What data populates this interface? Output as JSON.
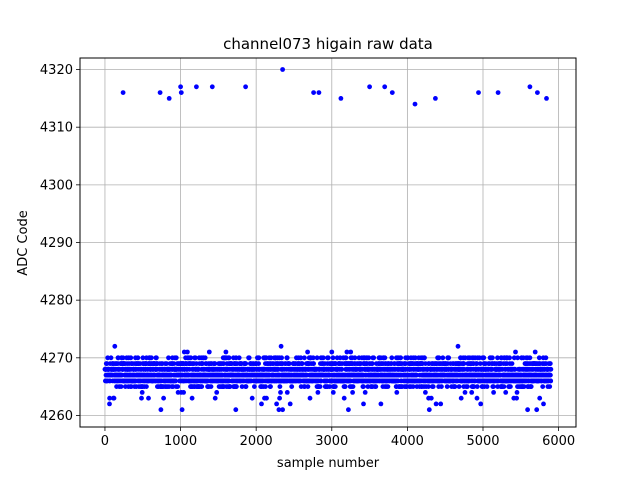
{
  "chart_data": {
    "type": "scatter",
    "title": "channel073 higain raw data",
    "xlabel": "sample number",
    "ylabel": "ADC Code",
    "xlim": [
      -330,
      6230
    ],
    "ylim": [
      4258,
      4322
    ],
    "xticks": [
      0,
      1000,
      2000,
      3000,
      4000,
      5000,
      6000
    ],
    "yticks": [
      4260,
      4270,
      4280,
      4290,
      4300,
      4310,
      4320
    ],
    "xtick_labels": [
      "0",
      "1000",
      "2000",
      "3000",
      "4000",
      "5000",
      "6000"
    ],
    "ytick_labels": [
      "4260",
      "4270",
      "4280",
      "4290",
      "4300",
      "4310",
      "4320"
    ],
    "grid": true,
    "marker_color": "#0000ff",
    "n_samples": 5900,
    "baseline": {
      "x_range": [
        0,
        5899
      ],
      "dense_y_range": [
        4265,
        4270
      ],
      "y_values_present": [
        4261,
        4262,
        4263,
        4264,
        4265,
        4266,
        4267,
        4268,
        4269,
        4270,
        4271,
        4272
      ]
    },
    "series": [
      {
        "name": "",
        "points": [
          [
            240,
            4316
          ],
          [
            730,
            4316
          ],
          [
            850,
            4315
          ],
          [
            1000,
            4317
          ],
          [
            1010,
            4316
          ],
          [
            1210,
            4317
          ],
          [
            1420,
            4317
          ],
          [
            1860,
            4317
          ],
          [
            2350,
            4320
          ],
          [
            2760,
            4316
          ],
          [
            2830,
            4316
          ],
          [
            3120,
            4315
          ],
          [
            3500,
            4317
          ],
          [
            3700,
            4317
          ],
          [
            3800,
            4316
          ],
          [
            4100,
            4314
          ],
          [
            4370,
            4315
          ],
          [
            4940,
            4316
          ],
          [
            5200,
            4316
          ],
          [
            5620,
            4317
          ],
          [
            5720,
            4316
          ],
          [
            5840,
            4315
          ],
          [
            130,
            4272
          ],
          [
            2330,
            4272
          ],
          [
            4670,
            4272
          ],
          [
            1050,
            4271
          ],
          [
            1090,
            4271
          ],
          [
            1380,
            4271
          ],
          [
            1600,
            4271
          ],
          [
            2680,
            4271
          ],
          [
            3000,
            4271
          ],
          [
            3200,
            4271
          ],
          [
            3250,
            4271
          ],
          [
            5430,
            4271
          ],
          [
            5690,
            4271
          ],
          [
            1730,
            4261
          ],
          [
            1020,
            4261
          ],
          [
            2300,
            4261
          ],
          [
            3220,
            4261
          ],
          [
            4290,
            4261
          ],
          [
            5590,
            4261
          ],
          [
            5710,
            4261
          ],
          [
            740,
            4261
          ],
          [
            2350,
            4261
          ],
          [
            5800,
            4262
          ],
          [
            4380,
            4262
          ],
          [
            4440,
            4262
          ],
          [
            4970,
            4262
          ],
          [
            2450,
            4262
          ],
          [
            2270,
            4262
          ],
          [
            2070,
            4262
          ],
          [
            60,
            4262
          ],
          [
            3420,
            4262
          ],
          [
            3650,
            4262
          ]
        ]
      }
    ]
  }
}
